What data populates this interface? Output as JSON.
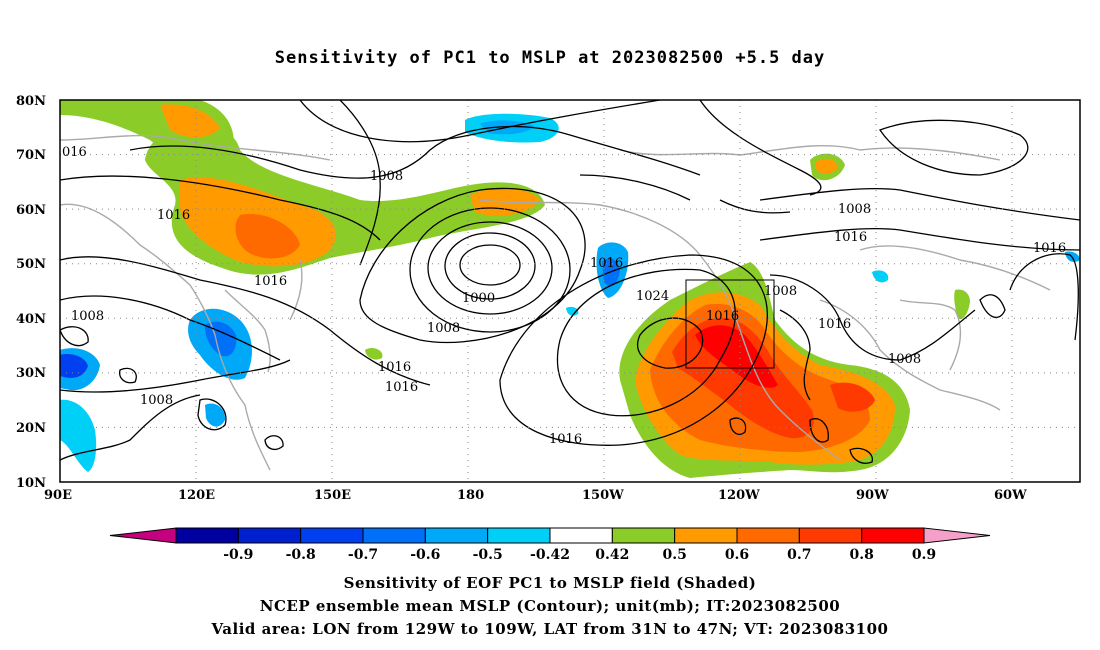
{
  "title": "Sensitivity of PC1 to MSLP at 2023082500 +5.5 day",
  "map": {
    "lat_ticks": [
      "80N",
      "70N",
      "60N",
      "50N",
      "40N",
      "30N",
      "20N",
      "10N"
    ],
    "lon_ticks": [
      "90E",
      "120E",
      "150E",
      "180",
      "150W",
      "120W",
      "90W",
      "60W"
    ],
    "contour_labels": [
      "1008",
      "1016",
      "1016",
      "1016",
      "1000",
      "1008",
      "1016",
      "1016",
      "1008",
      "1008",
      "1016",
      "1024",
      "1008",
      "1016",
      "1016",
      "1008",
      "1016",
      "1016",
      "016",
      "1008"
    ]
  },
  "colorbar": {
    "labels": [
      "-0.9",
      "-0.8",
      "-0.7",
      "-0.6",
      "-0.5",
      "-0.42",
      "0.42",
      "0.5",
      "0.6",
      "0.7",
      "0.8",
      "0.9"
    ],
    "colors": [
      "#c4007f",
      "#0000a0",
      "#0020d0",
      "#0040f0",
      "#0070f8",
      "#00a8f8",
      "#00d0f8",
      "#ffffff",
      "#8ccc28",
      "#ff9a00",
      "#ff6a00",
      "#ff3a00",
      "#ff0000",
      "#f4a0c8"
    ]
  },
  "captions": {
    "line1": "Sensitivity of EOF PC1 to MSLP field (Shaded)",
    "line2": "NCEP ensemble mean MSLP (Contour); unit(mb); IT:2023082500",
    "line3": "Valid area: LON from 129W to 109W, LAT from 31N to 47N; VT: 2023083100"
  }
}
